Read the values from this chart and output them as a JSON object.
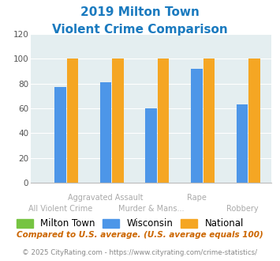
{
  "title_line1": "2019 Milton Town",
  "title_line2": "Violent Crime Comparison",
  "wisconsin_values": [
    77,
    81,
    60,
    92,
    63
  ],
  "national_values": [
    100,
    100,
    100,
    100,
    100
  ],
  "milton_values": [
    0,
    0,
    0,
    0,
    0
  ],
  "color_milton": "#76c442",
  "color_wisconsin": "#4d96e8",
  "color_national": "#f5a623",
  "background_chart": "#e4eef0",
  "ylim": [
    0,
    120
  ],
  "yticks": [
    0,
    20,
    40,
    60,
    80,
    100,
    120
  ],
  "legend_labels": [
    "Milton Town",
    "Wisconsin",
    "National"
  ],
  "x_top_labels": [
    "",
    "Aggravated Assault",
    "",
    "Rape",
    ""
  ],
  "x_bottom_labels": [
    "All Violent Crime",
    "",
    "Murder & Mans...",
    "",
    "Robbery"
  ],
  "footnote1": "Compared to U.S. average. (U.S. average equals 100)",
  "footnote2": "© 2025 CityRating.com - https://www.cityrating.com/crime-statistics/",
  "title_color": "#1a7abf",
  "footnote1_color": "#cc6600",
  "footnote2_color": "#888888",
  "xlabel_color": "#aaaaaa"
}
